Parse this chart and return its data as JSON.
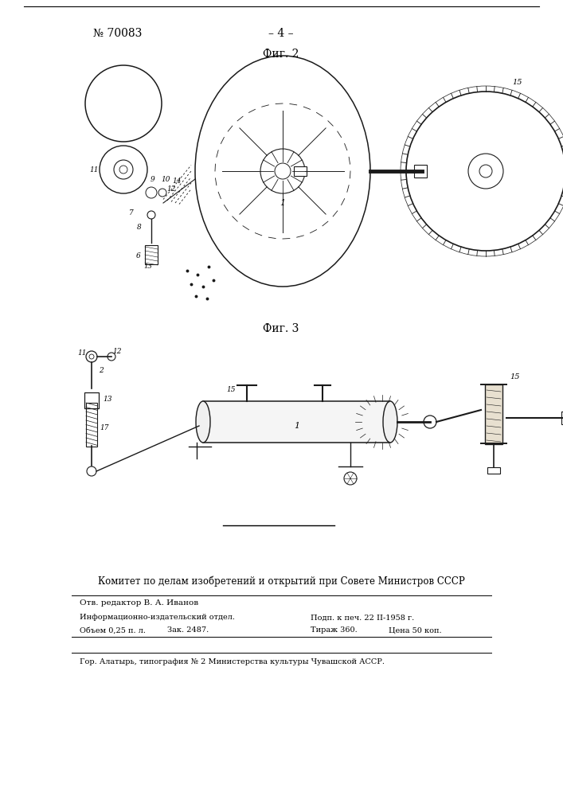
{
  "background_color": "#ffffff",
  "page_number_text": "№ 70083",
  "page_center_text": "– 4 –",
  "fig2_label": "Фиг. 2",
  "fig3_label": "Фиг. 3",
  "committee_text": "Комитет по делам изобретений и открытий при Совете Министров СССР",
  "editor_text": "Отв. редактор В. А. Иванов",
  "info_col1_row1": "Информационно-издательский отдел.",
  "info_col2_row1": "Подп. к печ. 22 II-1958 г.",
  "info_col1_row2_a": "Объем 0,25 п. л.",
  "info_col1_row2_b": "Зак. 2487.",
  "info_col2_row2_a": "Тираж 360.",
  "info_col2_row2_b": "Цена 50 коп.",
  "printer_text": "Гор. Алатырь, типография № 2 Министерства культуры Чувашской АССР.",
  "line_color": "#000000",
  "text_color": "#000000",
  "drawing_color": "#1a1a1a"
}
